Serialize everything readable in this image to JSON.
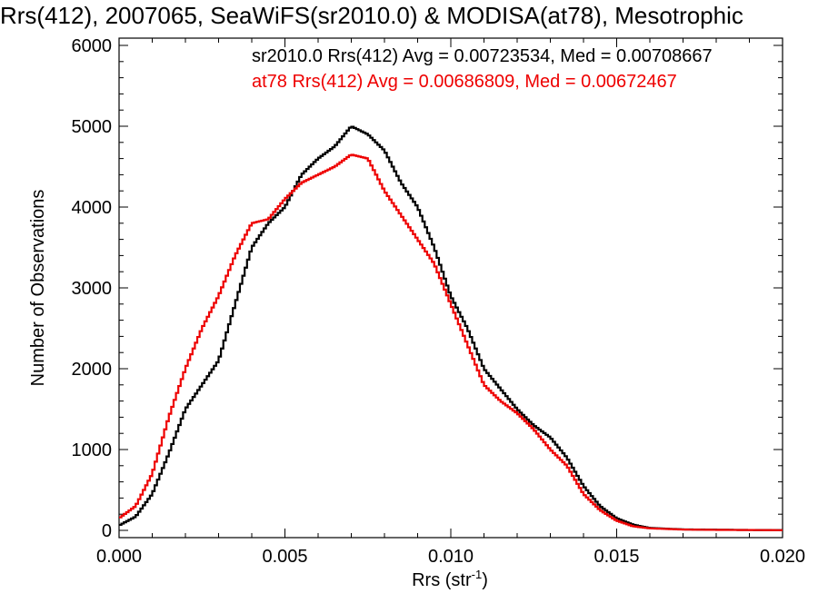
{
  "chart_data": {
    "type": "line",
    "title": "Rrs(412), 2007065, SeaWiFS(sr2010.0) & MODISA(at78), Mesotrophic",
    "xlabel": "Rrs (str",
    "xlabel_sup": "-1",
    "xlabel_close": ")",
    "ylabel": "Number of Observations",
    "xlim": [
      0.0,
      0.02
    ],
    "ylim": [
      0,
      6000
    ],
    "grid": false,
    "legend_position": "top-right",
    "x_tick_labels": [
      "0.000",
      "0.005",
      "0.010",
      "0.015",
      "0.020"
    ],
    "x_ticks": [
      0.0,
      0.005,
      0.01,
      0.015,
      0.02
    ],
    "y_tick_labels": [
      "0",
      "1000",
      "2000",
      "3000",
      "4000",
      "5000",
      "6000"
    ],
    "y_ticks": [
      0,
      1000,
      2000,
      3000,
      4000,
      5000,
      6000
    ],
    "legend": [
      "sr2010.0 Rrs(412) Avg = 0.00723534, Med = 0.00708667",
      "at78 Rrs(412) Avg = 0.00686809, Med = 0.00672467"
    ],
    "series": [
      {
        "color": "#000000",
        "x": [
          0.0,
          0.0005,
          0.001,
          0.0015,
          0.002,
          0.0025,
          0.003,
          0.0035,
          0.004,
          0.0045,
          0.005,
          0.0055,
          0.006,
          0.0065,
          0.007,
          0.0075,
          0.008,
          0.0085,
          0.009,
          0.0095,
          0.01,
          0.0105,
          0.011,
          0.0115,
          0.012,
          0.0125,
          0.013,
          0.0135,
          0.014,
          0.0145,
          0.015,
          0.0155,
          0.016,
          0.017,
          0.018,
          0.019,
          0.02
        ],
        "values": [
          60,
          170,
          450,
          950,
          1500,
          1800,
          2100,
          2800,
          3500,
          3800,
          4000,
          4400,
          4600,
          4750,
          5000,
          4900,
          4700,
          4300,
          4000,
          3500,
          2900,
          2500,
          2000,
          1750,
          1500,
          1300,
          1150,
          900,
          550,
          300,
          150,
          70,
          30,
          12,
          8,
          5,
          3
        ]
      },
      {
        "color": "#ee0000",
        "x": [
          0.0,
          0.0005,
          0.001,
          0.0015,
          0.002,
          0.0025,
          0.003,
          0.0035,
          0.004,
          0.0045,
          0.005,
          0.0055,
          0.006,
          0.0065,
          0.007,
          0.0075,
          0.008,
          0.0085,
          0.009,
          0.0095,
          0.01,
          0.0105,
          0.011,
          0.0115,
          0.012,
          0.0125,
          0.013,
          0.0135,
          0.014,
          0.0145,
          0.015,
          0.0155,
          0.016,
          0.017,
          0.018,
          0.019,
          0.02
        ],
        "values": [
          150,
          300,
          700,
          1400,
          2000,
          2500,
          2900,
          3400,
          3800,
          3850,
          4100,
          4300,
          4400,
          4500,
          4650,
          4600,
          4200,
          3900,
          3600,
          3300,
          2800,
          2300,
          1800,
          1600,
          1450,
          1250,
          1000,
          800,
          450,
          250,
          120,
          50,
          25,
          10,
          6,
          4,
          2
        ]
      }
    ]
  }
}
